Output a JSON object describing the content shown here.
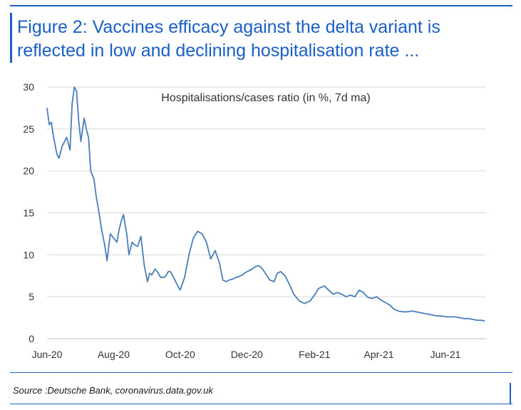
{
  "figure": {
    "title_line1": "Figure 2: Vaccines efficacy against the delta variant is",
    "title_line2": "reflected in low and declining hospitalisation rate ...",
    "source": "Source :Deutsche Bank, coronavirus.data.gov.uk"
  },
  "colors": {
    "accent": "#1f5fbf",
    "line": "#4a7ebb",
    "grid": "#d9d9d9"
  },
  "chart_data": {
    "type": "line",
    "title": "Hospitalisations/cases ratio (in %, 7d ma)",
    "xlabel": "",
    "ylabel": "",
    "ylim": [
      0,
      30
    ],
    "yticks": [
      0,
      5,
      10,
      15,
      20,
      25,
      30
    ],
    "xticks": [
      "Jun-20",
      "Aug-20",
      "Oct-20",
      "Dec-20",
      "Feb-21",
      "Apr-21",
      "Jun-21"
    ],
    "grid": true,
    "legend": "none",
    "series": [
      {
        "name": "",
        "x": [
          "2020-06-01",
          "2020-06-03",
          "2020-06-05",
          "2020-06-07",
          "2020-06-10",
          "2020-06-12",
          "2020-06-15",
          "2020-06-19",
          "2020-06-22",
          "2020-06-24",
          "2020-06-26",
          "2020-06-28",
          "2020-06-30",
          "2020-07-02",
          "2020-07-05",
          "2020-07-07",
          "2020-07-09",
          "2020-07-11",
          "2020-07-14",
          "2020-07-16",
          "2020-07-18",
          "2020-07-21",
          "2020-07-24",
          "2020-07-26",
          "2020-07-29",
          "2020-08-01",
          "2020-08-04",
          "2020-08-06",
          "2020-08-08",
          "2020-08-10",
          "2020-08-13",
          "2020-08-15",
          "2020-08-18",
          "2020-08-20",
          "2020-08-23",
          "2020-08-26",
          "2020-08-29",
          "2020-09-01",
          "2020-09-03",
          "2020-09-05",
          "2020-09-08",
          "2020-09-10",
          "2020-09-13",
          "2020-09-16",
          "2020-09-18",
          "2020-09-20",
          "2020-09-22",
          "2020-09-25",
          "2020-09-28",
          "2020-10-01",
          "2020-10-05",
          "2020-10-09",
          "2020-10-13",
          "2020-10-17",
          "2020-10-21",
          "2020-10-25",
          "2020-10-29",
          "2020-11-02",
          "2020-11-06",
          "2020-11-09",
          "2020-11-12",
          "2020-11-15",
          "2020-11-18",
          "2020-11-21",
          "2020-11-24",
          "2020-11-27",
          "2020-11-30",
          "2020-12-03",
          "2020-12-06",
          "2020-12-09",
          "2020-12-12",
          "2020-12-15",
          "2020-12-18",
          "2020-12-22",
          "2020-12-26",
          "2020-12-29",
          "2021-01-01",
          "2021-01-05",
          "2021-01-09",
          "2021-01-13",
          "2021-01-18",
          "2021-01-23",
          "2021-01-28",
          "2021-02-01",
          "2021-02-05",
          "2021-02-10",
          "2021-02-14",
          "2021-02-18",
          "2021-02-22",
          "2021-02-26",
          "2021-03-02",
          "2021-03-06",
          "2021-03-10",
          "2021-03-14",
          "2021-03-18",
          "2021-03-22",
          "2021-03-26",
          "2021-03-30",
          "2021-04-03",
          "2021-04-07",
          "2021-04-11",
          "2021-04-15",
          "2021-04-19",
          "2021-04-23",
          "2021-04-27",
          "2021-05-01",
          "2021-05-05",
          "2021-05-09",
          "2021-05-13",
          "2021-05-17",
          "2021-05-21",
          "2021-05-25",
          "2021-05-29",
          "2021-06-02",
          "2021-06-06",
          "2021-06-10",
          "2021-06-14",
          "2021-06-18",
          "2021-06-22",
          "2021-06-26",
          "2021-06-30",
          "2021-07-04",
          "2021-07-07"
        ],
        "y": [
          27.5,
          25.5,
          25.8,
          24,
          22,
          21.5,
          23,
          24,
          22.5,
          28,
          30,
          29.5,
          26,
          23.5,
          26.3,
          25,
          24,
          20,
          19,
          17,
          15.5,
          13,
          11,
          9.3,
          12.5,
          12,
          11.5,
          13,
          14,
          14.8,
          12.5,
          10,
          11.5,
          11.2,
          11,
          12.2,
          8.8,
          6.8,
          7.8,
          7.6,
          8.3,
          8,
          7.3,
          7.3,
          7.5,
          8,
          8,
          7.3,
          6.5,
          5.8,
          7.3,
          10,
          12,
          12.8,
          12.5,
          11.5,
          9.5,
          10.5,
          9,
          7,
          6.8,
          7,
          7.1,
          7.3,
          7.4,
          7.6,
          7.9,
          8.1,
          8.3,
          8.6,
          8.7,
          8.4,
          7.8,
          7,
          6.8,
          7.8,
          8,
          7.5,
          6.5,
          5.3,
          4.5,
          4.2,
          4.5,
          5.2,
          6,
          6.3,
          5.8,
          5.3,
          5.5,
          5.3,
          5,
          5.2,
          5,
          5.8,
          5.5,
          4.9,
          4.8,
          5,
          4.6,
          4.3,
          4,
          3.5,
          3.3,
          3.2,
          3.2,
          3.3,
          3.2,
          3.1,
          3,
          2.9,
          2.8,
          2.7,
          2.7,
          2.6,
          2.6,
          2.6,
          2.5,
          2.4,
          2.4,
          2.3,
          2.2,
          2.2,
          2.1
        ]
      }
    ]
  }
}
